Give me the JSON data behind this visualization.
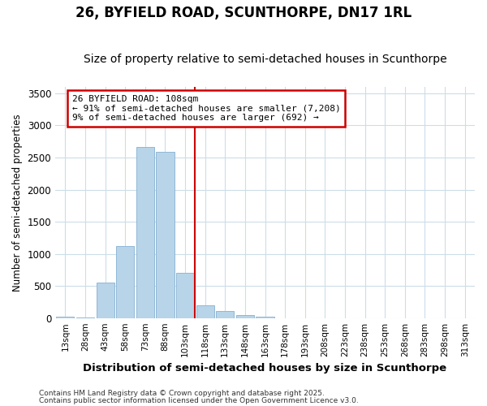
{
  "title": "26, BYFIELD ROAD, SCUNTHORPE, DN17 1RL",
  "subtitle": "Size of property relative to semi-detached houses in Scunthorpe",
  "xlabel": "Distribution of semi-detached houses by size in Scunthorpe",
  "ylabel": "Number of semi-detached properties",
  "categories": [
    "13sqm",
    "28sqm",
    "43sqm",
    "58sqm",
    "73sqm",
    "88sqm",
    "103sqm",
    "118sqm",
    "133sqm",
    "148sqm",
    "163sqm",
    "178sqm",
    "193sqm",
    "208sqm",
    "223sqm",
    "238sqm",
    "253sqm",
    "268sqm",
    "283sqm",
    "298sqm",
    "313sqm"
  ],
  "values": [
    20,
    10,
    550,
    1120,
    2660,
    2590,
    700,
    200,
    110,
    50,
    20,
    0,
    0,
    0,
    0,
    0,
    0,
    0,
    0,
    0,
    0
  ],
  "bar_color": "#b8d4e8",
  "bar_edge_color": "#90b8d8",
  "vline_x": 6.5,
  "vline_color": "#cc0000",
  "annotation_title": "26 BYFIELD ROAD: 108sqm",
  "annotation_line1": "← 91% of semi-detached houses are smaller (7,208)",
  "annotation_line2": "9% of semi-detached houses are larger (692) →",
  "annotation_box_edgecolor": "#cc0000",
  "ylim": [
    0,
    3600
  ],
  "yticks": [
    0,
    500,
    1000,
    1500,
    2000,
    2500,
    3000,
    3500
  ],
  "footnote1": "Contains HM Land Registry data © Crown copyright and database right 2025.",
  "footnote2": "Contains public sector information licensed under the Open Government Licence v3.0.",
  "bg_color": "#ffffff",
  "grid_color": "#ccdde8",
  "title_fontsize": 12,
  "subtitle_fontsize": 10
}
